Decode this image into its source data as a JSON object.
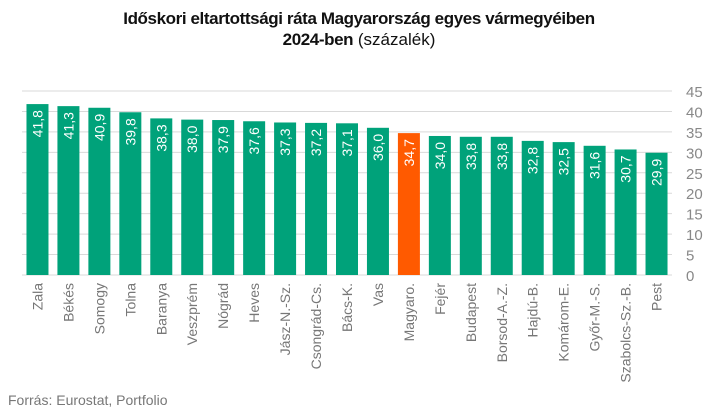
{
  "chart_data": {
    "type": "bar",
    "title": "Időskori eltartottsági ráta Magyarország egyes vármegyéiben",
    "title_line2_bold": "2024-ben",
    "title_unit": "(százalék)",
    "categories": [
      "Zala",
      "Békés",
      "Somogy",
      "Tolna",
      "Baranya",
      "Veszprém",
      "Nógrád",
      "Heves",
      "Jász-N.-Sz.",
      "Csongrád-Cs.",
      "Bács-K.",
      "Vas",
      "Magyaro.",
      "Fejér",
      "Budapest",
      "Borsod-A.-Z.",
      "Hajdú-B.",
      "Komárom-E.",
      "Győr-M.-S.",
      "Szabolcs-Sz.-B.",
      "Pest"
    ],
    "values": [
      41.8,
      41.3,
      40.9,
      39.8,
      38.3,
      38.0,
      37.9,
      37.6,
      37.3,
      37.2,
      37.1,
      36.0,
      34.7,
      34.0,
      33.8,
      33.8,
      32.8,
      32.5,
      31.6,
      30.7,
      29.9
    ],
    "value_labels": [
      "41,8",
      "41,3",
      "40,9",
      "39,8",
      "38,3",
      "38,0",
      "37,9",
      "37,6",
      "37,3",
      "37,2",
      "37,1",
      "36,0",
      "34,7",
      "34,0",
      "33,8",
      "33,8",
      "32,8",
      "32,5",
      "31,6",
      "30,7",
      "29,9"
    ],
    "highlight_index": 12,
    "colors": {
      "default": "#00a27a",
      "highlight": "#ff5a00",
      "grid": "#d9d9d9",
      "tick": "#888888"
    },
    "ylim": [
      0,
      45
    ],
    "yticks": [
      0,
      5,
      10,
      15,
      20,
      25,
      30,
      35,
      40,
      45
    ],
    "ylabel": "",
    "xlabel": "",
    "grid": true,
    "y_axis_side": "right"
  },
  "source": "Forrás: Eurostat, Portfolio"
}
